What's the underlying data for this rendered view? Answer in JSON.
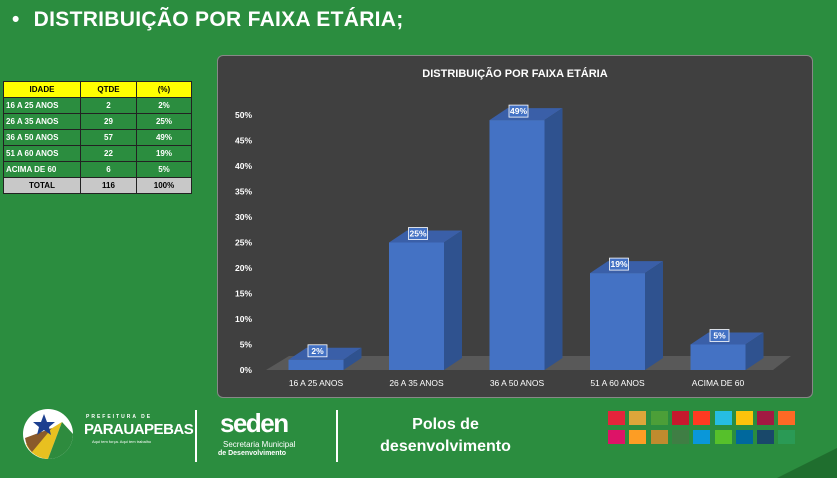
{
  "title": "DISTRIBUIÇÃO POR FAIXA ETÁRIA;",
  "bullet": "•",
  "table": {
    "headers": [
      "IDADE",
      "QTDE",
      "(%)"
    ],
    "rows": [
      [
        "16 A 25 ANOS",
        "2",
        "2%"
      ],
      [
        "26 A 35 ANOS",
        "29",
        "25%"
      ],
      [
        "36 A 50 ANOS",
        "57",
        "49%"
      ],
      [
        "51 A 60 ANOS",
        "22",
        "19%"
      ],
      [
        "ACIMA DE 60",
        "6",
        "5%"
      ]
    ],
    "total": [
      "TOTAL",
      "116",
      "100%"
    ]
  },
  "chart_data": {
    "type": "bar",
    "title": "DISTRIBUIÇÃO POR FAIXA ETÁRIA",
    "categories": [
      "16 A 25 ANOS",
      "26 A 35 ANOS",
      "36 A 50 ANOS",
      "51 A 60 ANOS",
      "ACIMA DE 60"
    ],
    "values": [
      2,
      25,
      49,
      19,
      5
    ],
    "data_labels": [
      "2%",
      "25%",
      "49%",
      "19%",
      "5%"
    ],
    "ylim": [
      0,
      50
    ],
    "yticks": [
      "0%",
      "5%",
      "10%",
      "15%",
      "20%",
      "25%",
      "30%",
      "35%",
      "40%",
      "45%",
      "50%"
    ],
    "colors": {
      "bar": "#4472c4",
      "bar_side": "#2f528f",
      "bar_top": "#3a5fa8"
    }
  },
  "footer": {
    "prefeitura": "PREFEITURA DE",
    "city": "PARAUAPEBAS",
    "slogan": "Aqui tem força. Aqui tem trabalho",
    "seden": "seden",
    "seden_sub1": "Secretaria Municipal",
    "seden_sub2": "de Desenvolvimento",
    "polos1": "Polos de",
    "polos2": "desenvolvimento"
  }
}
